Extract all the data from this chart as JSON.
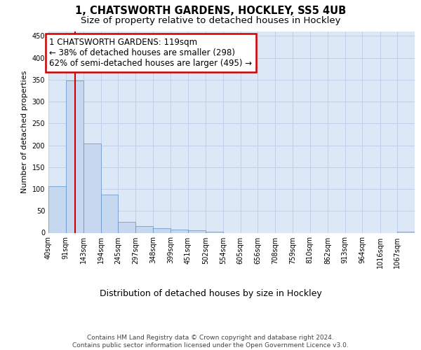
{
  "title": "1, CHATSWORTH GARDENS, HOCKLEY, SS5 4UB",
  "subtitle": "Size of property relative to detached houses in Hockley",
  "xlabel": "Distribution of detached houses by size in Hockley",
  "ylabel": "Number of detached properties",
  "bar_edges": [
    40,
    91,
    143,
    194,
    245,
    297,
    348,
    399,
    451,
    502,
    554,
    605,
    656,
    708,
    759,
    810,
    862,
    913,
    964,
    1016,
    1067,
    1118
  ],
  "bar_heights": [
    107,
    348,
    204,
    88,
    25,
    16,
    10,
    7,
    5,
    2,
    0,
    0,
    0,
    0,
    0,
    0,
    0,
    0,
    0,
    0,
    3
  ],
  "bar_color": "#c5d8f0",
  "bar_edgecolor": "#6090c8",
  "property_size": 119,
  "vline_color": "#cc0000",
  "annotation_text": "1 CHATSWORTH GARDENS: 119sqm\n← 38% of detached houses are smaller (298)\n62% of semi-detached houses are larger (495) →",
  "annotation_box_color": "#cc0000",
  "ylim": [
    0,
    460
  ],
  "yticks": [
    0,
    50,
    100,
    150,
    200,
    250,
    300,
    350,
    400,
    450
  ],
  "grid_color": "#c0d0e8",
  "bg_color": "#dce8f5",
  "footer_text": "Contains HM Land Registry data © Crown copyright and database right 2024.\nContains public sector information licensed under the Open Government Licence v3.0.",
  "title_fontsize": 10.5,
  "subtitle_fontsize": 9.5,
  "xlabel_fontsize": 9,
  "ylabel_fontsize": 8,
  "tick_fontsize": 7,
  "annotation_fontsize": 8.5,
  "footer_fontsize": 6.5
}
